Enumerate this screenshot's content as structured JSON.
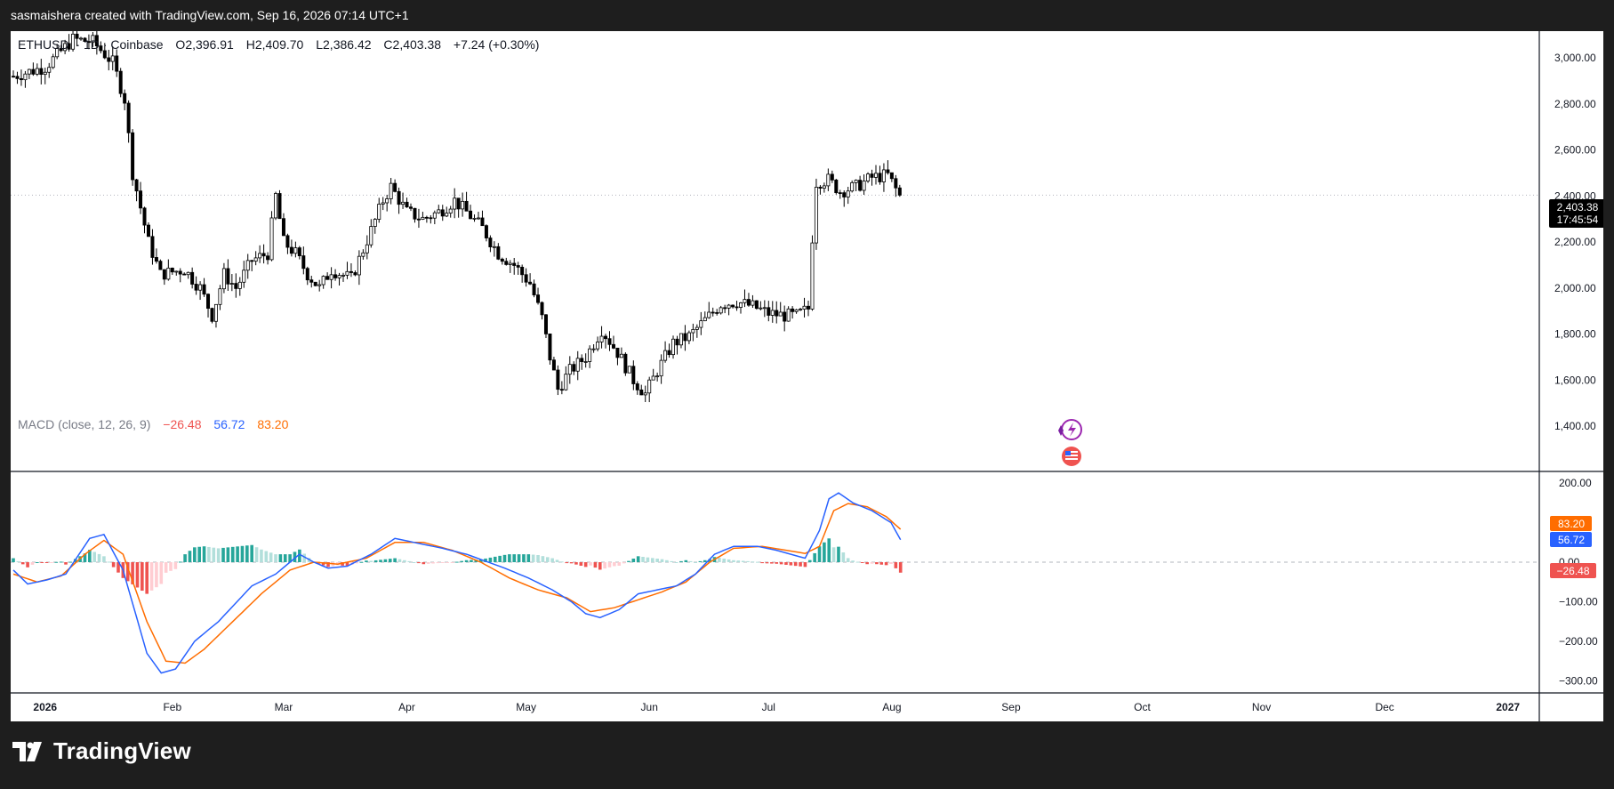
{
  "header": {
    "caption": "sasmaishera created with TradingView.com, Sep 16, 2026 07:14 UTC+1"
  },
  "brand": {
    "name": "TradingView"
  },
  "chart_data": {
    "type": "candlestick",
    "symbol": "ETHUSD",
    "interval": "1D",
    "exchange": "Coinbase",
    "ohlc": {
      "open_label": "O",
      "open": "2,396.91",
      "high_label": "H",
      "high": "2,409.70",
      "low_label": "L",
      "low": "2,386.42",
      "close_label": "C",
      "close": "2,403.38",
      "change": "+7.24 (+0.30%)"
    },
    "last_price": "2,403.38",
    "countdown": "17:45:54",
    "price_axis": {
      "ticks": [
        "3,000.00",
        "2,800.00",
        "2,600.00",
        "2,400.00",
        "2,200.00",
        "2,000.00",
        "1,800.00",
        "1,600.00",
        "1,400.00"
      ]
    },
    "time_axis": {
      "ticks": [
        "2026",
        "Feb",
        "Mar",
        "Apr",
        "May",
        "Jun",
        "Jul",
        "Aug",
        "Sep",
        "Oct",
        "Nov",
        "Dec",
        "2027"
      ]
    },
    "price_anchors": [
      [
        0,
        2920
      ],
      [
        8,
        2960
      ],
      [
        15,
        3080
      ],
      [
        20,
        3070
      ],
      [
        25,
        2980
      ],
      [
        28,
        2820
      ],
      [
        30,
        2500
      ],
      [
        34,
        2200
      ],
      [
        37,
        2060
      ],
      [
        43,
        2080
      ],
      [
        47,
        2000
      ],
      [
        50,
        1880
      ],
      [
        53,
        2060
      ],
      [
        56,
        2000
      ],
      [
        60,
        2120
      ],
      [
        64,
        2150
      ],
      [
        66,
        2400
      ],
      [
        68,
        2200
      ],
      [
        71,
        2150
      ],
      [
        74,
        2060
      ],
      [
        77,
        2000
      ],
      [
        80,
        2080
      ],
      [
        85,
        2040
      ],
      [
        90,
        2250
      ],
      [
        93,
        2380
      ],
      [
        95,
        2440
      ],
      [
        99,
        2330
      ],
      [
        103,
        2300
      ],
      [
        107,
        2330
      ],
      [
        111,
        2380
      ],
      [
        114,
        2330
      ],
      [
        118,
        2260
      ],
      [
        122,
        2150
      ],
      [
        126,
        2100
      ],
      [
        130,
        2020
      ],
      [
        133,
        1870
      ],
      [
        135,
        1700
      ],
      [
        137,
        1560
      ],
      [
        140,
        1640
      ],
      [
        144,
        1700
      ],
      [
        148,
        1820
      ],
      [
        152,
        1720
      ],
      [
        156,
        1600
      ],
      [
        159,
        1540
      ],
      [
        162,
        1640
      ],
      [
        166,
        1760
      ],
      [
        170,
        1790
      ],
      [
        174,
        1860
      ],
      [
        178,
        1930
      ],
      [
        182,
        1940
      ],
      [
        186,
        1920
      ],
      [
        190,
        1890
      ],
      [
        194,
        1880
      ],
      [
        197,
        1880
      ],
      [
        200,
        1910
      ],
      [
        201,
        2220
      ],
      [
        202,
        2460
      ],
      [
        205,
        2470
      ],
      [
        208,
        2420
      ],
      [
        212,
        2440
      ],
      [
        216,
        2480
      ],
      [
        220,
        2490
      ],
      [
        223,
        2400
      ]
    ],
    "macd": {
      "label": "MACD (close, 12, 26, 9)",
      "histogram": "−26.48",
      "macd": "56.72",
      "signal": "83.20",
      "axis_ticks": [
        "200.00",
        "100.00",
        "0.00",
        "−100.00",
        "−200.00",
        "−300.00"
      ],
      "macd_anchors": [
        [
          0,
          -20
        ],
        [
          3,
          -55
        ],
        [
          7,
          -45
        ],
        [
          11,
          -30
        ],
        [
          16,
          60
        ],
        [
          19,
          70
        ],
        [
          23,
          -20
        ],
        [
          28,
          -230
        ],
        [
          31,
          -280
        ],
        [
          34,
          -270
        ],
        [
          38,
          -200
        ],
        [
          43,
          -150
        ],
        [
          50,
          -60
        ],
        [
          55,
          -30
        ],
        [
          60,
          20
        ],
        [
          63,
          0
        ],
        [
          66,
          -15
        ],
        [
          70,
          -10
        ],
        [
          75,
          20
        ],
        [
          80,
          60
        ],
        [
          84,
          50
        ],
        [
          90,
          35
        ],
        [
          95,
          20
        ],
        [
          103,
          -15
        ],
        [
          108,
          -40
        ],
        [
          113,
          -70
        ],
        [
          117,
          -100
        ],
        [
          120,
          -130
        ],
        [
          123,
          -140
        ],
        [
          127,
          -120
        ],
        [
          131,
          -80
        ],
        [
          135,
          -70
        ],
        [
          139,
          -60
        ],
        [
          143,
          -30
        ],
        [
          147,
          20
        ],
        [
          151,
          40
        ],
        [
          156,
          40
        ],
        [
          160,
          30
        ],
        [
          163,
          20
        ],
        [
          166,
          10
        ],
        [
          169,
          80
        ],
        [
          171,
          160
        ],
        [
          173,
          175
        ],
        [
          176,
          150
        ],
        [
          180,
          130
        ],
        [
          184,
          100
        ],
        [
          186,
          56.72
        ]
      ],
      "signal_anchors": [
        [
          0,
          -30
        ],
        [
          5,
          -50
        ],
        [
          10,
          -35
        ],
        [
          15,
          20
        ],
        [
          19,
          55
        ],
        [
          23,
          20
        ],
        [
          28,
          -150
        ],
        [
          32,
          -250
        ],
        [
          36,
          -255
        ],
        [
          40,
          -220
        ],
        [
          46,
          -150
        ],
        [
          52,
          -80
        ],
        [
          58,
          -20
        ],
        [
          63,
          0
        ],
        [
          68,
          -5
        ],
        [
          74,
          10
        ],
        [
          80,
          50
        ],
        [
          86,
          50
        ],
        [
          92,
          30
        ],
        [
          98,
          0
        ],
        [
          104,
          -40
        ],
        [
          110,
          -70
        ],
        [
          116,
          -90
        ],
        [
          121,
          -125
        ],
        [
          126,
          -115
        ],
        [
          131,
          -95
        ],
        [
          136,
          -75
        ],
        [
          141,
          -50
        ],
        [
          146,
          0
        ],
        [
          151,
          35
        ],
        [
          157,
          40
        ],
        [
          162,
          30
        ],
        [
          166,
          22
        ],
        [
          169,
          40
        ],
        [
          172,
          130
        ],
        [
          175,
          148
        ],
        [
          179,
          140
        ],
        [
          183,
          115
        ],
        [
          186,
          83.2
        ]
      ]
    },
    "colors": {
      "up": "#26a69a",
      "down": "#ef5350",
      "macd_line": "#2962ff",
      "signal_line": "#ff6d00",
      "candle": "#000000"
    }
  }
}
